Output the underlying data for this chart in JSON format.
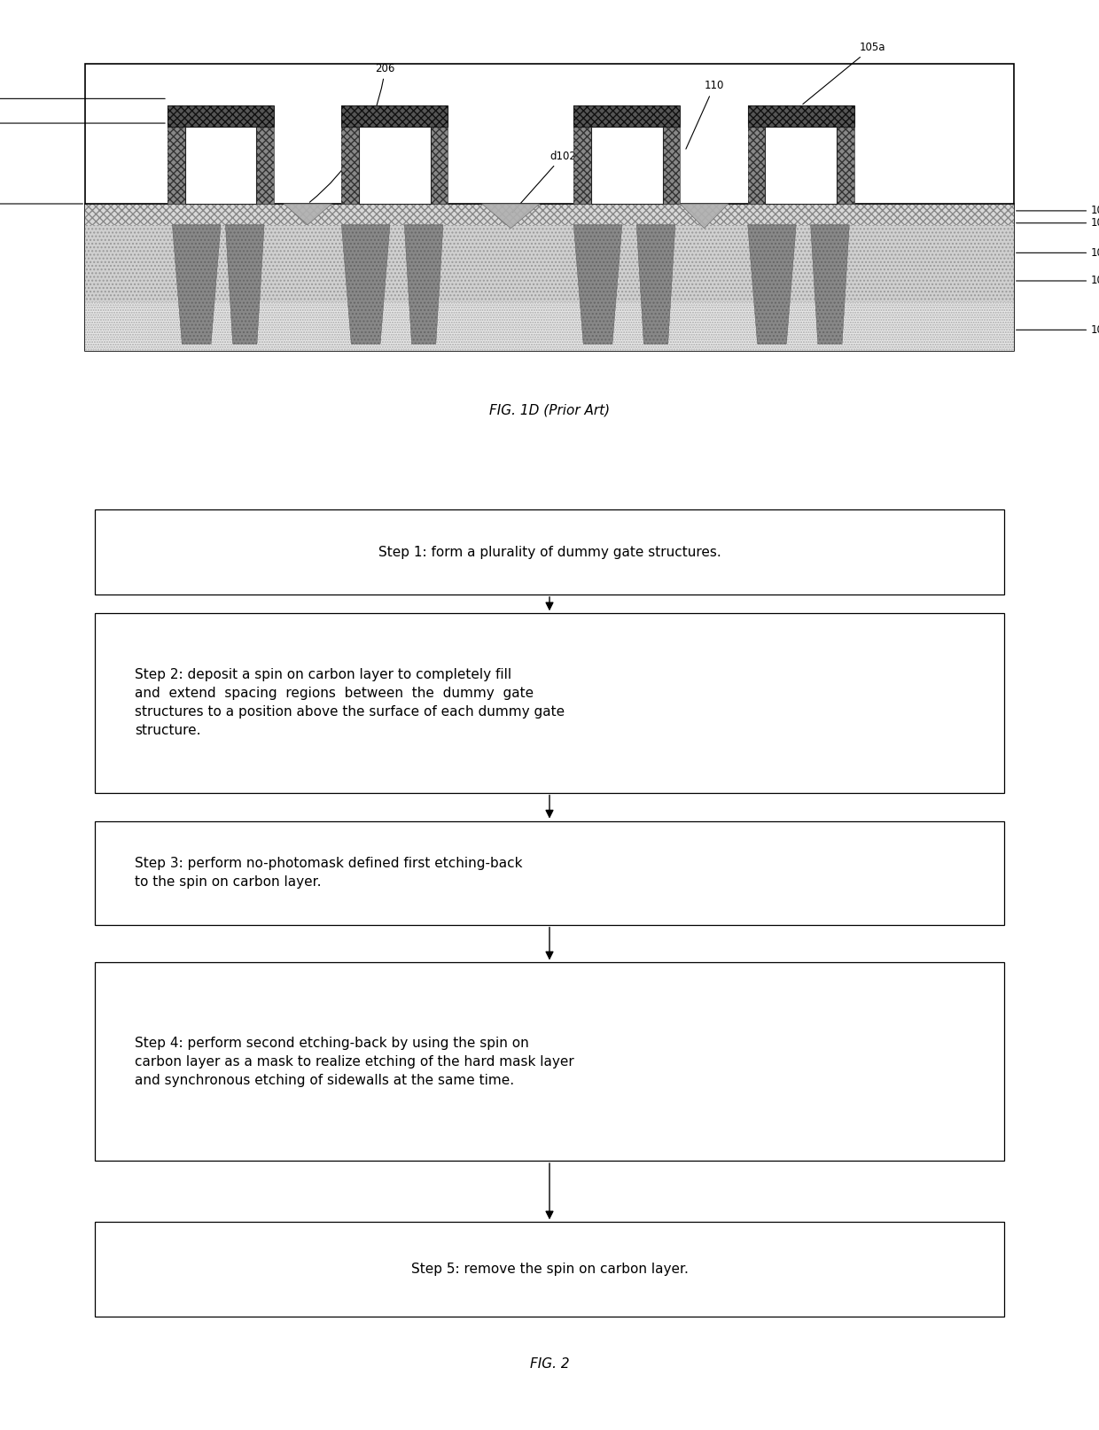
{
  "fig_width": 12.4,
  "fig_height": 16.14,
  "bg_color": "#ffffff",
  "fig1d_caption": "FIG. 1D (Prior Art)",
  "fig2_caption": "FIG. 2",
  "flowchart_steps": [
    "Step 1: form a plurality of dummy gate structures.",
    "Step 2: deposit a spin on carbon layer to completely fill\nand  extend  spacing  regions  between  the  dummy  gate\nstructures to a position above the surface of each dummy gate\nstructure.",
    "Step 3: perform no-photomask defined first etching-back\nto the spin on carbon layer.",
    "Step 4: perform second etching-back by using the spin on\ncarbon layer as a mask to realize etching of the hard mask layer\nand synchronous etching of sidewalls at the same time.",
    "Step 5: remove the spin on carbon layer."
  ],
  "box_color": "#ffffff",
  "box_edge_color": "#000000",
  "text_color": "#000000",
  "arrow_color": "#000000"
}
